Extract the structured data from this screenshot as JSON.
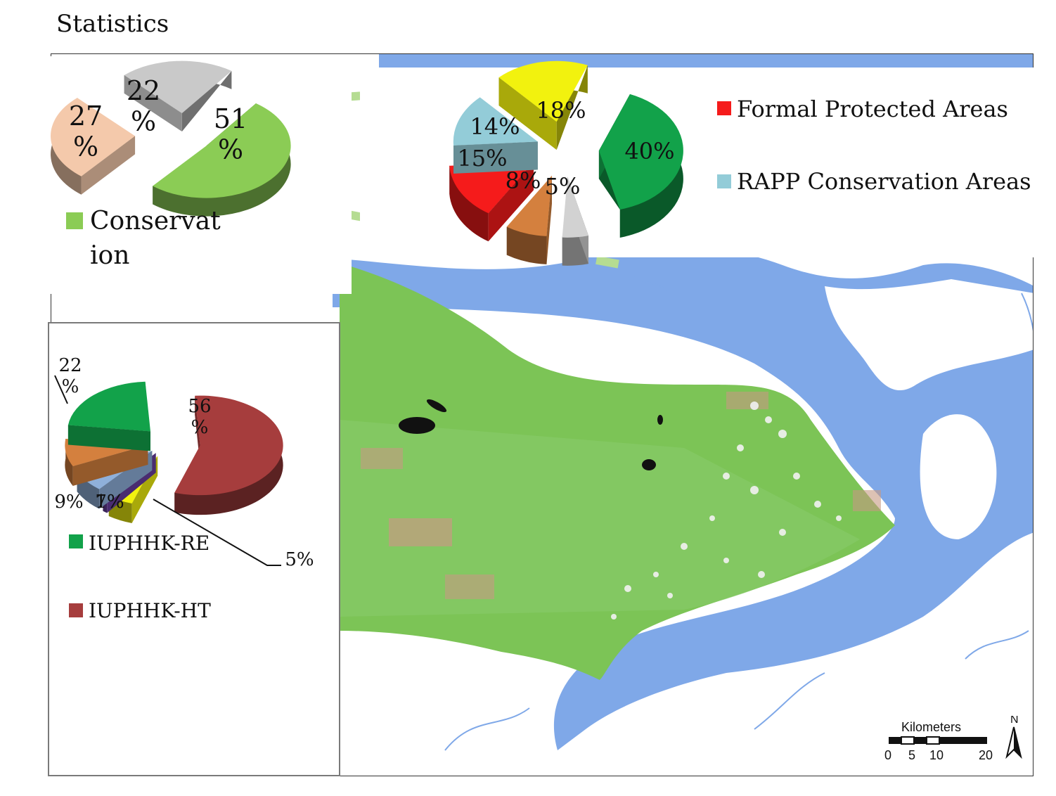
{
  "title": "Statistics",
  "chart_data": [
    {
      "type": "pie",
      "slices": [
        {
          "label": "27\n%",
          "value": 27,
          "color": "#f4c9ab"
        },
        {
          "label": "22\n%",
          "value": 22,
          "color": "#c9c9c9"
        },
        {
          "label": "51\n%",
          "value": 51,
          "color": "#8bcc55",
          "name": "Conservat ion"
        }
      ],
      "legend": [
        "Conservat",
        "ion"
      ]
    },
    {
      "type": "pie",
      "slices": [
        {
          "label": "40%",
          "value": 40,
          "color": "#12a24a"
        },
        {
          "label": "5%",
          "value": 5,
          "color": "#d2d2d2"
        },
        {
          "label": "8%",
          "value": 8,
          "color": "#d4803e"
        },
        {
          "label": "15%",
          "value": 15,
          "color": "#f51b1b"
        },
        {
          "label": "14%",
          "value": 14,
          "color": "#93ccd8"
        },
        {
          "label": "18%",
          "value": 18,
          "color": "#f2f20e"
        }
      ],
      "legend": [
        {
          "name": "Formal Protected Areas",
          "color": "#f51b1b"
        },
        {
          "name": "RAPP Conservation Areas",
          "color": "#93ccd8"
        }
      ]
    },
    {
      "type": "pie",
      "slices": [
        {
          "label": "56\n%",
          "value": 56,
          "color": "#a63d3d"
        },
        {
          "label": "5%",
          "value": 5,
          "color": "#f2f20e"
        },
        {
          "label": "1%",
          "value": 1,
          "color": "#6a3fa0"
        },
        {
          "label": "7%",
          "value": 7,
          "color": "#8fb0da"
        },
        {
          "label": "9%",
          "value": 9,
          "color": "#d4803e"
        },
        {
          "label": "22\n%",
          "value": 22,
          "color": "#12a24a"
        }
      ],
      "legend": [
        {
          "name": "IUPHHK-RE",
          "color": "#12a24a"
        },
        {
          "name": "IUPHHK-HT",
          "color": "#a63d3d"
        }
      ]
    }
  ],
  "scalebar": {
    "unit": "Kilometers",
    "ticks": [
      "0",
      "5",
      "10",
      "20"
    ],
    "north": "N"
  }
}
